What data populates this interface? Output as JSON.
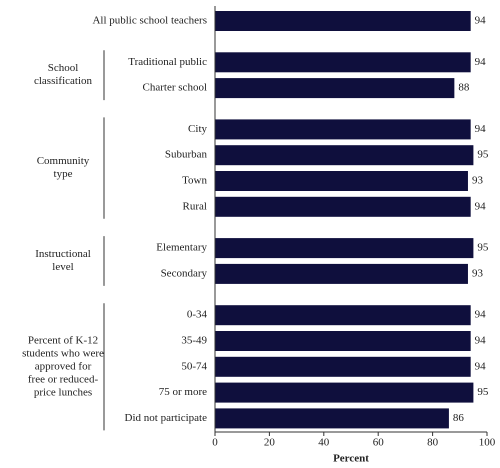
{
  "chart_data": {
    "type": "bar",
    "orientation": "horizontal",
    "color": "#0f0f3d",
    "groups": [
      {
        "categories": [
          "All public school teachers"
        ],
        "values": [
          94
        ]
      },
      {
        "label": [
          "School",
          "classification"
        ],
        "categories": [
          "Traditional public",
          "Charter school"
        ],
        "values": [
          94,
          88
        ]
      },
      {
        "label": [
          "Community",
          "type"
        ],
        "categories": [
          "City",
          "Suburban",
          "Town",
          "Rural"
        ],
        "values": [
          94,
          95,
          93,
          94
        ]
      },
      {
        "label": [
          "Instructional",
          "level"
        ],
        "categories": [
          "Elementary",
          "Secondary"
        ],
        "values": [
          95,
          93
        ]
      },
      {
        "label": [
          "Percent of K-12",
          "students who were",
          "approved for",
          "free or reduced-",
          "price lunches"
        ],
        "categories": [
          "0-34",
          "35-49",
          "50-74",
          "75 or more",
          "Did not participate"
        ],
        "values": [
          94,
          94,
          94,
          95,
          86
        ]
      }
    ],
    "x_label": "Percent",
    "xlim": [
      0,
      100
    ],
    "xticks": [
      0,
      20,
      40,
      60,
      80,
      100
    ]
  }
}
